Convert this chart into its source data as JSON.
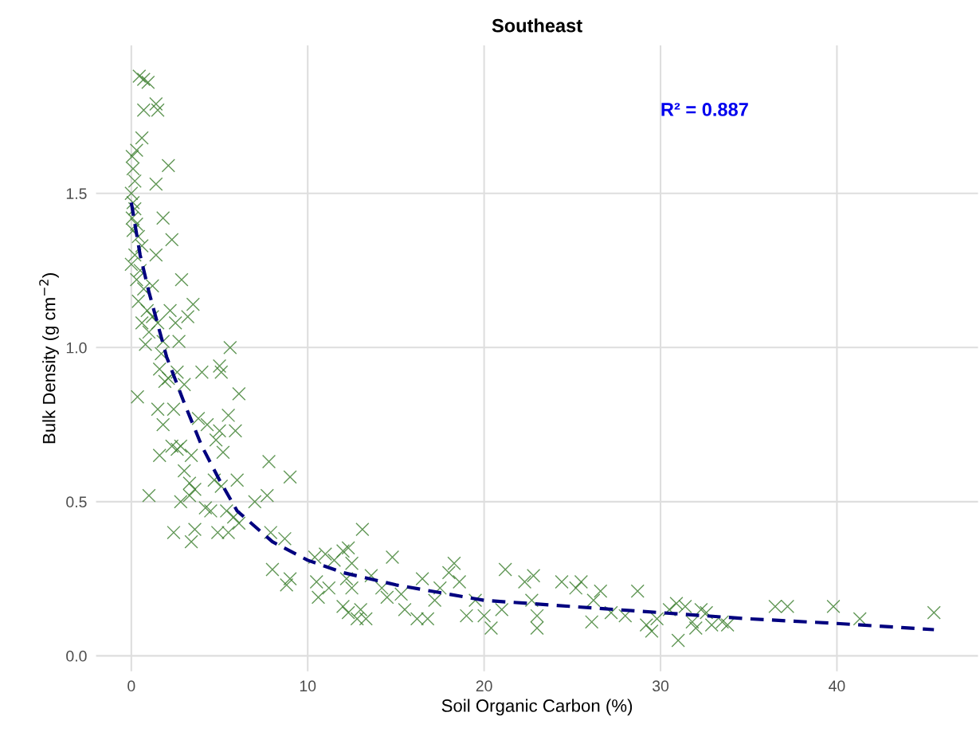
{
  "chart_data": {
    "type": "scatter",
    "title": "Southeast",
    "xlabel": "Soil Organic Carbon (%)",
    "ylabel": "Bulk Density (g cm$^{−2}$)",
    "xlim": [
      -2,
      48
    ],
    "ylim": [
      -0.05,
      1.98
    ],
    "xticks": [
      0,
      10,
      20,
      30,
      40
    ],
    "yticks": [
      {
        "value": 0,
        "label": "0.0"
      },
      {
        "value": 0.5,
        "label": "0.5"
      },
      {
        "value": 1,
        "label": "1.0"
      },
      {
        "value": 1.5,
        "label": "1.5"
      }
    ],
    "grid": true,
    "legend": false,
    "annotations": [
      "R² = 0.887"
    ],
    "series": [
      {
        "marker": "cross",
        "color": "#3a7d2c",
        "x": [
          0.45,
          0.7,
          0.95,
          0.7,
          1.4,
          1.5,
          0.6,
          0.3,
          2.1,
          0.05,
          0.1,
          0.2,
          1.4,
          1.8,
          2.3,
          2.85,
          0.0,
          0.1,
          0.2,
          0.05,
          0.3,
          0.1,
          0.4,
          0.6,
          0.2,
          0.0,
          0.5,
          0.3,
          0.7,
          0.4,
          0.9,
          0.6,
          1.0,
          0.8,
          1.2,
          1.5,
          1.8,
          1.7,
          2.2,
          2.5,
          2.7,
          3.2,
          3.5,
          1.4,
          1.2,
          1.6,
          1.9,
          2.1,
          2.6,
          3.0,
          4.0,
          5.0,
          5.1,
          5.6,
          6.1,
          0.35,
          1.5,
          1.8,
          2.4,
          3.8,
          2.3,
          2.6,
          2.8,
          1.6,
          3.4,
          4.3,
          5.0,
          5.5,
          5.9,
          4.8,
          5.2,
          3.0,
          3.3,
          3.6,
          4.2,
          4.5,
          2.8,
          3.3,
          1.0,
          2.4,
          3.6,
          3.4,
          4.7,
          5.1,
          5.4,
          5.8,
          6.0,
          4.9,
          5.5,
          6.1,
          7.0,
          7.7,
          7.8,
          9.0,
          8.7,
          7.9,
          8.0,
          9.0,
          8.8,
          10.4,
          11.0,
          11.5,
          10.5,
          10.6,
          11.2,
          12.0,
          12.3,
          12.5,
          13.1,
          12.2,
          12.5,
          12.0,
          12.3,
          12.8,
          13.0,
          13.3,
          13.6,
          14.2,
          14.8,
          14.5,
          15.3,
          15.5,
          16.2,
          16.8,
          16.5,
          17.2,
          17.5,
          18.0,
          18.3,
          18.6,
          19.0,
          19.5,
          20.0,
          20.4,
          21.0,
          21.2,
          22.3,
          22.8,
          22.7,
          23.0,
          23.0,
          24.4,
          25.2,
          25.5,
          26.2,
          26.1,
          26.6,
          27.2,
          28.0,
          28.7,
          29.2,
          29.5,
          29.8,
          30.5,
          30.9,
          31.0,
          31.4,
          31.8,
          32.3,
          32.6,
          32.0,
          32.9,
          33.5,
          33.8,
          36.5,
          37.2,
          39.8,
          41.3,
          45.5
        ],
        "values": [
          1.88,
          1.87,
          1.86,
          1.77,
          1.79,
          1.77,
          1.68,
          1.64,
          1.59,
          1.62,
          1.58,
          1.54,
          1.53,
          1.42,
          1.35,
          1.22,
          1.5,
          1.47,
          1.45,
          1.42,
          1.4,
          1.38,
          1.36,
          1.33,
          1.3,
          1.27,
          1.25,
          1.22,
          1.19,
          1.15,
          1.12,
          1.08,
          1.05,
          1.01,
          1.1,
          1.08,
          1.02,
          0.98,
          1.12,
          1.08,
          1.02,
          1.1,
          1.14,
          1.3,
          1.2,
          0.93,
          0.89,
          0.9,
          0.92,
          0.88,
          0.92,
          0.94,
          0.92,
          1.0,
          0.85,
          0.84,
          0.8,
          0.75,
          0.8,
          0.77,
          0.68,
          0.67,
          0.68,
          0.65,
          0.65,
          0.75,
          0.73,
          0.78,
          0.73,
          0.7,
          0.66,
          0.6,
          0.56,
          0.54,
          0.48,
          0.47,
          0.5,
          0.52,
          0.52,
          0.4,
          0.41,
          0.37,
          0.57,
          0.55,
          0.47,
          0.45,
          0.57,
          0.4,
          0.4,
          0.43,
          0.5,
          0.52,
          0.63,
          0.58,
          0.38,
          0.4,
          0.28,
          0.25,
          0.23,
          0.32,
          0.33,
          0.31,
          0.24,
          0.19,
          0.22,
          0.34,
          0.35,
          0.3,
          0.41,
          0.25,
          0.22,
          0.16,
          0.14,
          0.12,
          0.15,
          0.12,
          0.26,
          0.22,
          0.32,
          0.19,
          0.2,
          0.15,
          0.12,
          0.12,
          0.25,
          0.18,
          0.22,
          0.27,
          0.3,
          0.24,
          0.13,
          0.18,
          0.13,
          0.09,
          0.15,
          0.28,
          0.24,
          0.26,
          0.18,
          0.13,
          0.09,
          0.24,
          0.22,
          0.24,
          0.18,
          0.11,
          0.21,
          0.14,
          0.13,
          0.21,
          0.1,
          0.08,
          0.12,
          0.15,
          0.17,
          0.05,
          0.16,
          0.11,
          0.15,
          0.14,
          0.09,
          0.1,
          0.11,
          0.1,
          0.16,
          0.16,
          0.16,
          0.12,
          0.14
        ]
      },
      {
        "type": "line",
        "line_style": "dashed",
        "marker": "none",
        "color": "#00007f",
        "x": [
          0,
          0.5,
          1,
          2,
          3,
          4,
          5,
          6,
          8,
          10,
          12,
          15,
          20,
          25,
          30,
          35,
          40,
          45.5
        ],
        "values": [
          1.47,
          1.3,
          1.18,
          0.97,
          0.82,
          0.68,
          0.57,
          0.47,
          0.37,
          0.31,
          0.27,
          0.23,
          0.18,
          0.16,
          0.14,
          0.12,
          0.105,
          0.085
        ]
      }
    ]
  }
}
